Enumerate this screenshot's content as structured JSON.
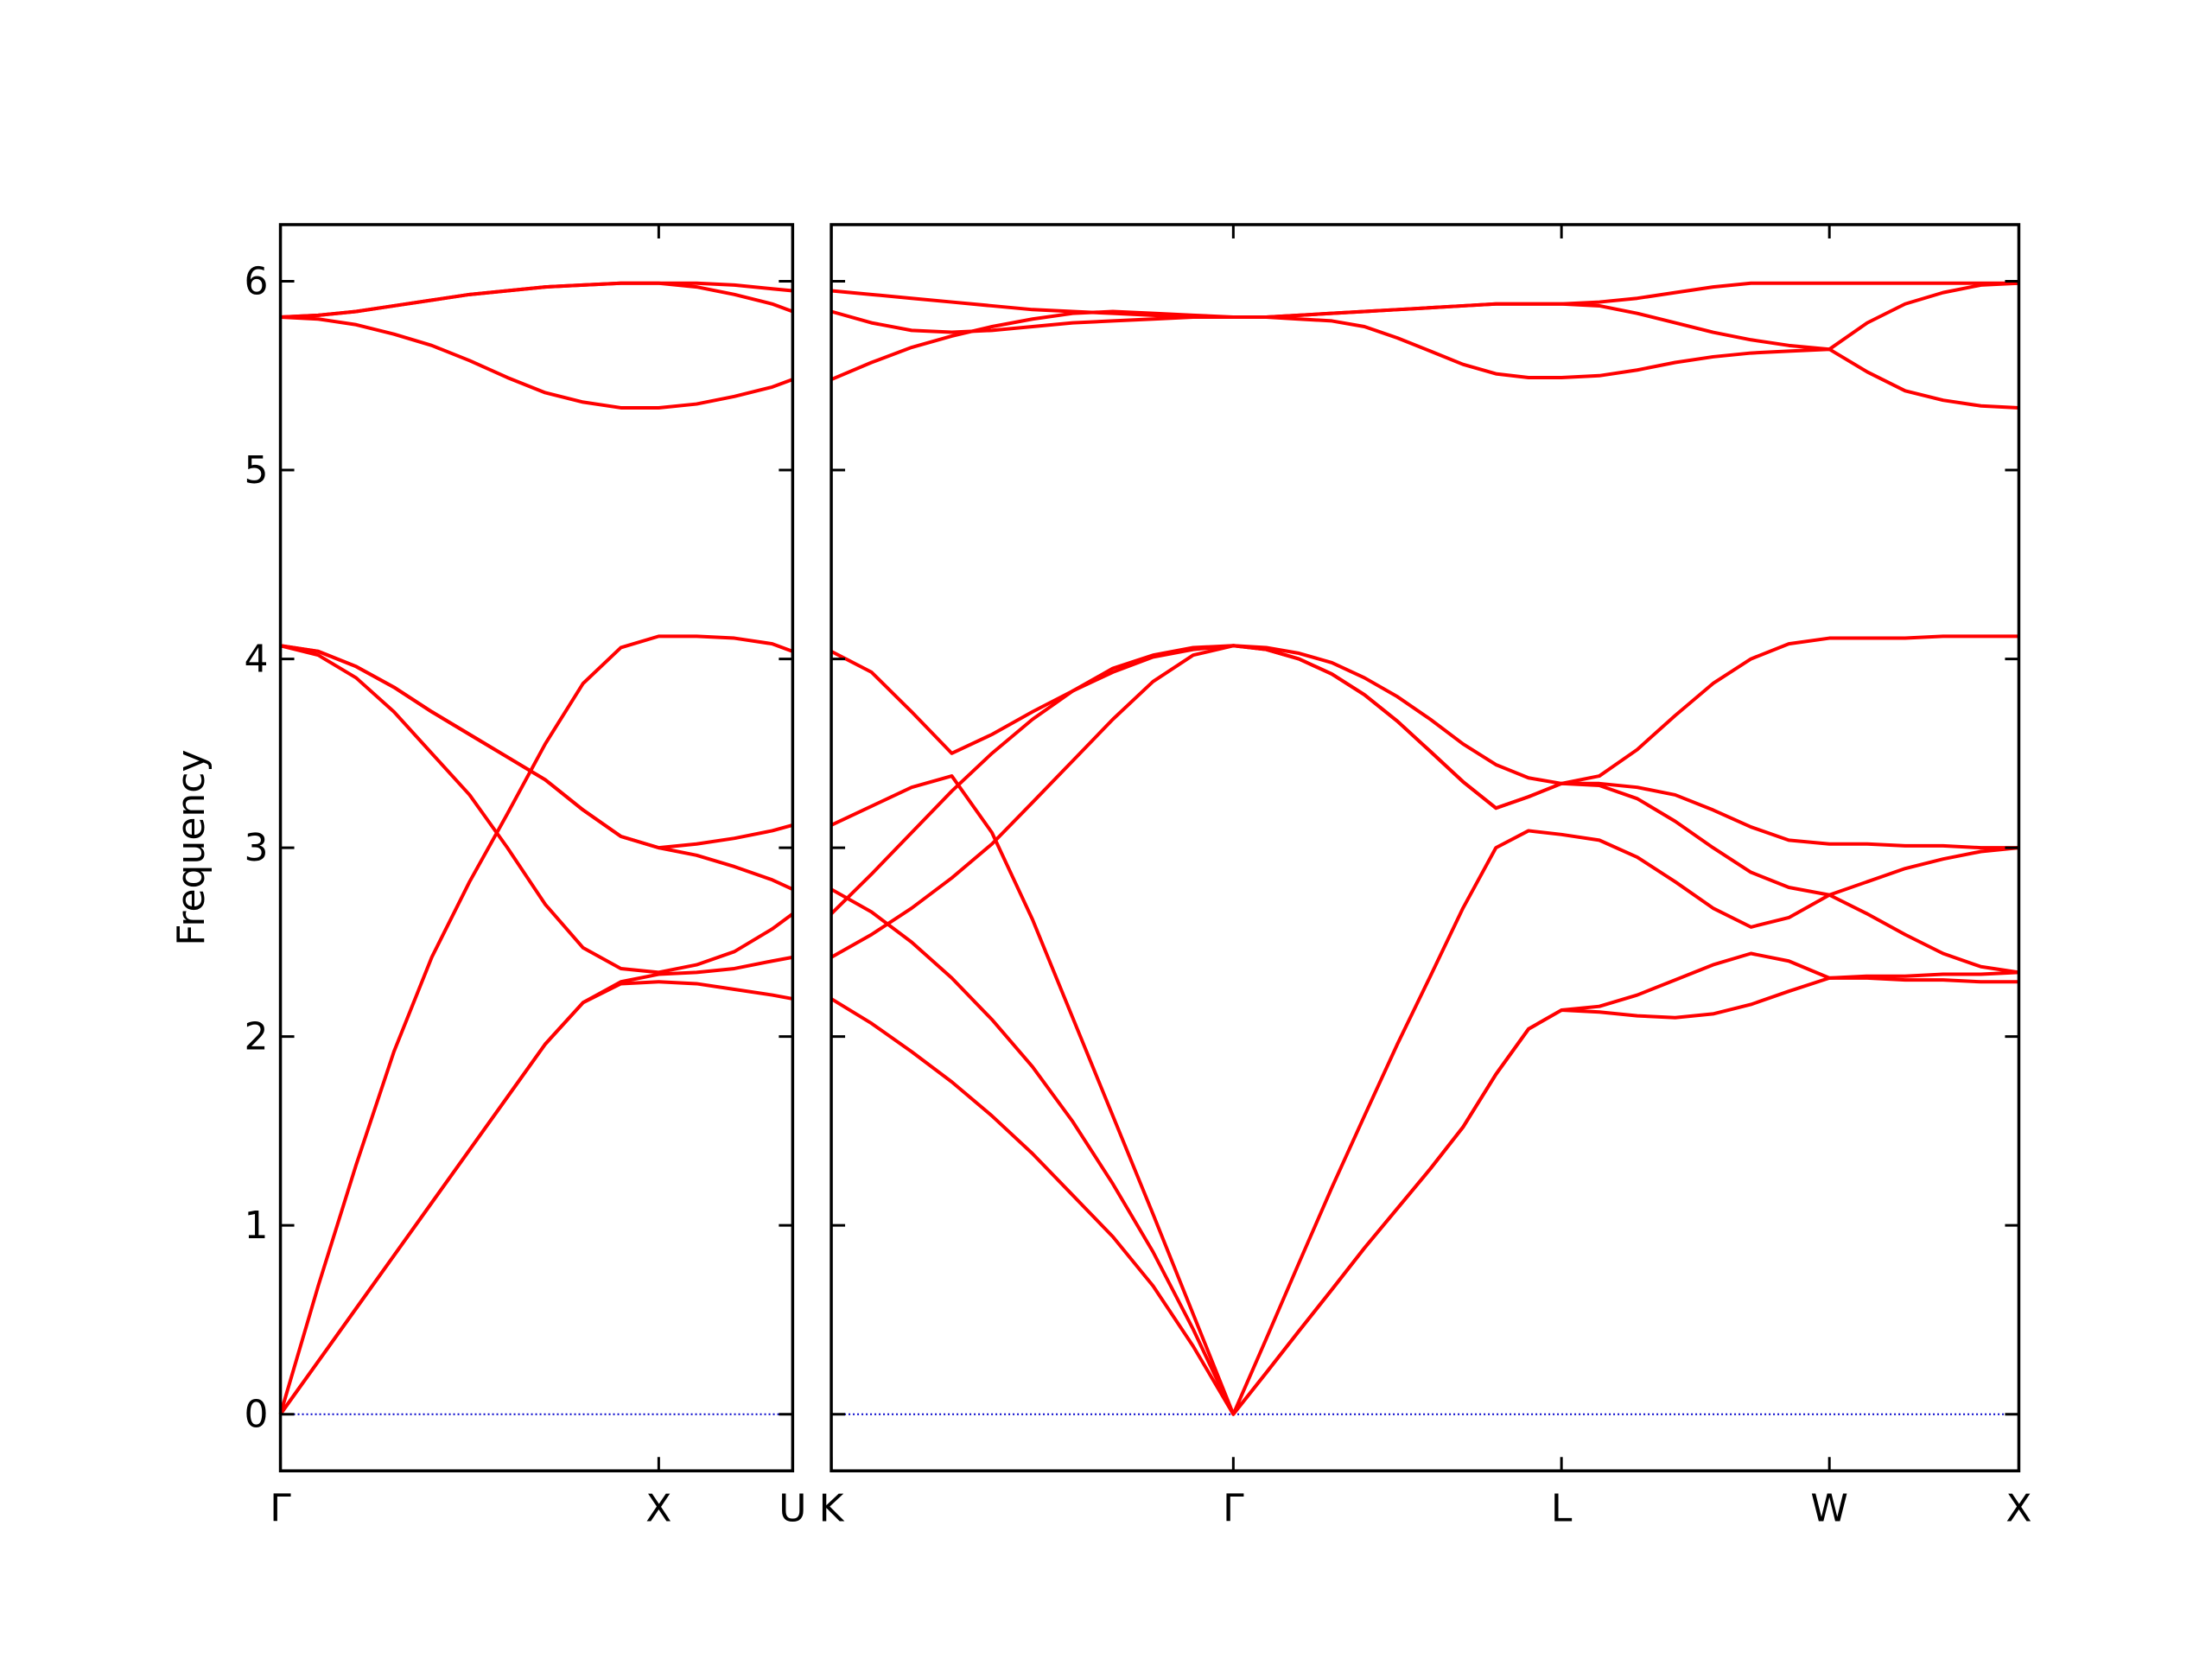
{
  "chart_data": [
    {
      "type": "line",
      "ylabel": "Frequency",
      "color": "#ff0000",
      "xlim": [
        0,
        1.354
      ],
      "ylim": [
        -0.3,
        6.3
      ],
      "xticks": [
        {
          "value": 0,
          "label": "Γ"
        },
        {
          "value": 1,
          "label": "X"
        },
        {
          "value": 1.354,
          "label": "U"
        }
      ],
      "yticks": [
        0,
        1,
        2,
        3,
        4,
        5,
        6
      ],
      "zero_line": 0,
      "zero_line_color": "#0000cc",
      "x": [
        0,
        0.1,
        0.2,
        0.3,
        0.4,
        0.5,
        0.6,
        0.7,
        0.8,
        0.9,
        1.0,
        1.1,
        1.2,
        1.3,
        1.354
      ],
      "series": [
        {
          "values": [
            0,
            0.28,
            0.56,
            0.84,
            1.12,
            1.4,
            1.68,
            1.96,
            2.18,
            2.28,
            2.29,
            2.28,
            2.25,
            2.22,
            2.2
          ]
        },
        {
          "values": [
            0,
            0.28,
            0.56,
            0.84,
            1.12,
            1.4,
            1.68,
            1.96,
            2.18,
            2.29,
            2.33,
            2.34,
            2.36,
            2.4,
            2.42
          ]
        },
        {
          "values": [
            0,
            0.68,
            1.32,
            1.92,
            2.42,
            2.82,
            3.18,
            3.55,
            3.87,
            4.06,
            4.12,
            4.12,
            4.11,
            4.08,
            4.04
          ]
        },
        {
          "values": [
            4.07,
            4.02,
            3.9,
            3.72,
            3.5,
            3.28,
            3.0,
            2.7,
            2.47,
            2.36,
            2.34,
            2.38,
            2.45,
            2.57,
            2.65
          ]
        },
        {
          "values": [
            4.07,
            4.04,
            3.96,
            3.85,
            3.72,
            3.6,
            3.48,
            3.36,
            3.2,
            3.06,
            3.0,
            3.02,
            3.05,
            3.09,
            3.12
          ]
        },
        {
          "values": [
            4.07,
            4.04,
            3.96,
            3.85,
            3.72,
            3.6,
            3.48,
            3.36,
            3.2,
            3.06,
            3.0,
            2.96,
            2.9,
            2.83,
            2.78
          ]
        },
        {
          "values": [
            5.81,
            5.8,
            5.77,
            5.72,
            5.66,
            5.58,
            5.49,
            5.41,
            5.36,
            5.33,
            5.33,
            5.35,
            5.39,
            5.44,
            5.48
          ]
        },
        {
          "values": [
            5.81,
            5.82,
            5.84,
            5.87,
            5.9,
            5.93,
            5.95,
            5.97,
            5.98,
            5.99,
            5.99,
            5.99,
            5.98,
            5.96,
            5.95
          ]
        },
        {
          "values": [
            5.81,
            5.82,
            5.84,
            5.87,
            5.9,
            5.93,
            5.95,
            5.97,
            5.98,
            5.99,
            5.99,
            5.97,
            5.93,
            5.88,
            5.84
          ]
        }
      ]
    },
    {
      "type": "line",
      "color": "#ff0000",
      "ytick_labels": false,
      "xlim": [
        0,
        3.134
      ],
      "ylim": [
        -0.3,
        6.3
      ],
      "xticks": [
        {
          "value": 0,
          "label": "K"
        },
        {
          "value": 1.061,
          "label": "Γ"
        },
        {
          "value": 1.927,
          "label": "L"
        },
        {
          "value": 2.634,
          "label": "W"
        },
        {
          "value": 3.134,
          "label": "X"
        }
      ],
      "yticks": [
        0,
        1,
        2,
        3,
        4,
        5,
        6
      ],
      "zero_line": 0,
      "zero_line_color": "#0000cc",
      "x": [
        0,
        0.106,
        0.212,
        0.318,
        0.424,
        0.531,
        0.637,
        0.743,
        0.849,
        0.955,
        1.061,
        1.148,
        1.234,
        1.321,
        1.407,
        1.494,
        1.581,
        1.667,
        1.754,
        1.84,
        1.927,
        2.027,
        2.127,
        2.227,
        2.327,
        2.427,
        2.527,
        2.634,
        2.734,
        2.834,
        2.934,
        3.034,
        3.134
      ],
      "series": [
        {
          "values": [
            2.2,
            2.07,
            1.92,
            1.76,
            1.58,
            1.38,
            1.16,
            0.94,
            0.68,
            0.36,
            0,
            0.22,
            0.44,
            0.66,
            0.88,
            1.09,
            1.3,
            1.52,
            1.8,
            2.04,
            2.14,
            2.13,
            2.11,
            2.1,
            2.12,
            2.17,
            2.24,
            2.31,
            2.31,
            2.3,
            2.3,
            2.29,
            2.29
          ]
        },
        {
          "values": [
            2.78,
            2.66,
            2.5,
            2.31,
            2.09,
            1.84,
            1.55,
            1.22,
            0.86,
            0.45,
            0,
            0.22,
            0.44,
            0.66,
            0.88,
            1.09,
            1.3,
            1.52,
            1.8,
            2.04,
            2.14,
            2.16,
            2.22,
            2.3,
            2.38,
            2.44,
            2.4,
            2.31,
            2.32,
            2.32,
            2.33,
            2.33,
            2.34
          ]
        },
        {
          "values": [
            3.12,
            3.22,
            3.32,
            3.38,
            3.08,
            2.62,
            2.1,
            1.58,
            1.06,
            0.53,
            0,
            0.4,
            0.8,
            1.2,
            1.58,
            1.96,
            2.32,
            2.68,
            3.0,
            3.09,
            3.07,
            3.04,
            2.95,
            2.82,
            2.68,
            2.58,
            2.63,
            2.75,
            2.82,
            2.89,
            2.94,
            2.98,
            3.0
          ]
        },
        {
          "values": [
            2.42,
            2.54,
            2.68,
            2.84,
            3.02,
            3.24,
            3.46,
            3.68,
            3.88,
            4.02,
            4.07,
            4.05,
            4.0,
            3.92,
            3.81,
            3.67,
            3.51,
            3.35,
            3.21,
            3.27,
            3.34,
            3.33,
            3.26,
            3.14,
            3.0,
            2.87,
            2.79,
            2.75,
            2.65,
            2.54,
            2.44,
            2.37,
            2.34
          ]
        },
        {
          "values": [
            2.65,
            2.86,
            3.08,
            3.3,
            3.5,
            3.68,
            3.83,
            3.95,
            4.02,
            4.06,
            4.07,
            4.05,
            4.0,
            3.92,
            3.81,
            3.67,
            3.51,
            3.35,
            3.21,
            3.27,
            3.34,
            3.34,
            3.32,
            3.28,
            3.2,
            3.11,
            3.04,
            3.02,
            3.02,
            3.01,
            3.01,
            3.0,
            3.0
          ]
        },
        {
          "values": [
            4.04,
            3.93,
            3.72,
            3.5,
            3.6,
            3.72,
            3.83,
            3.93,
            4.01,
            4.05,
            4.07,
            4.06,
            4.03,
            3.98,
            3.9,
            3.8,
            3.68,
            3.55,
            3.44,
            3.37,
            3.34,
            3.38,
            3.52,
            3.7,
            3.87,
            4.0,
            4.08,
            4.11,
            4.11,
            4.11,
            4.12,
            4.12,
            4.12
          ]
        },
        {
          "values": [
            5.48,
            5.57,
            5.65,
            5.71,
            5.76,
            5.8,
            5.83,
            5.84,
            5.83,
            5.82,
            5.81,
            5.81,
            5.8,
            5.79,
            5.76,
            5.7,
            5.63,
            5.56,
            5.51,
            5.49,
            5.49,
            5.5,
            5.53,
            5.57,
            5.6,
            5.62,
            5.63,
            5.64,
            5.52,
            5.42,
            5.37,
            5.34,
            5.33
          ]
        },
        {
          "values": [
            5.84,
            5.78,
            5.74,
            5.73,
            5.74,
            5.76,
            5.78,
            5.79,
            5.8,
            5.81,
            5.81,
            5.81,
            5.82,
            5.83,
            5.84,
            5.85,
            5.86,
            5.87,
            5.88,
            5.88,
            5.88,
            5.87,
            5.83,
            5.78,
            5.73,
            5.69,
            5.66,
            5.64,
            5.78,
            5.88,
            5.94,
            5.98,
            5.99
          ]
        },
        {
          "values": [
            5.95,
            5.93,
            5.91,
            5.89,
            5.87,
            5.85,
            5.84,
            5.83,
            5.82,
            5.81,
            5.81,
            5.81,
            5.82,
            5.83,
            5.84,
            5.85,
            5.86,
            5.87,
            5.88,
            5.88,
            5.88,
            5.89,
            5.91,
            5.94,
            5.97,
            5.99,
            5.99,
            5.99,
            5.99,
            5.99,
            5.99,
            5.99,
            5.99
          ]
        }
      ]
    }
  ]
}
